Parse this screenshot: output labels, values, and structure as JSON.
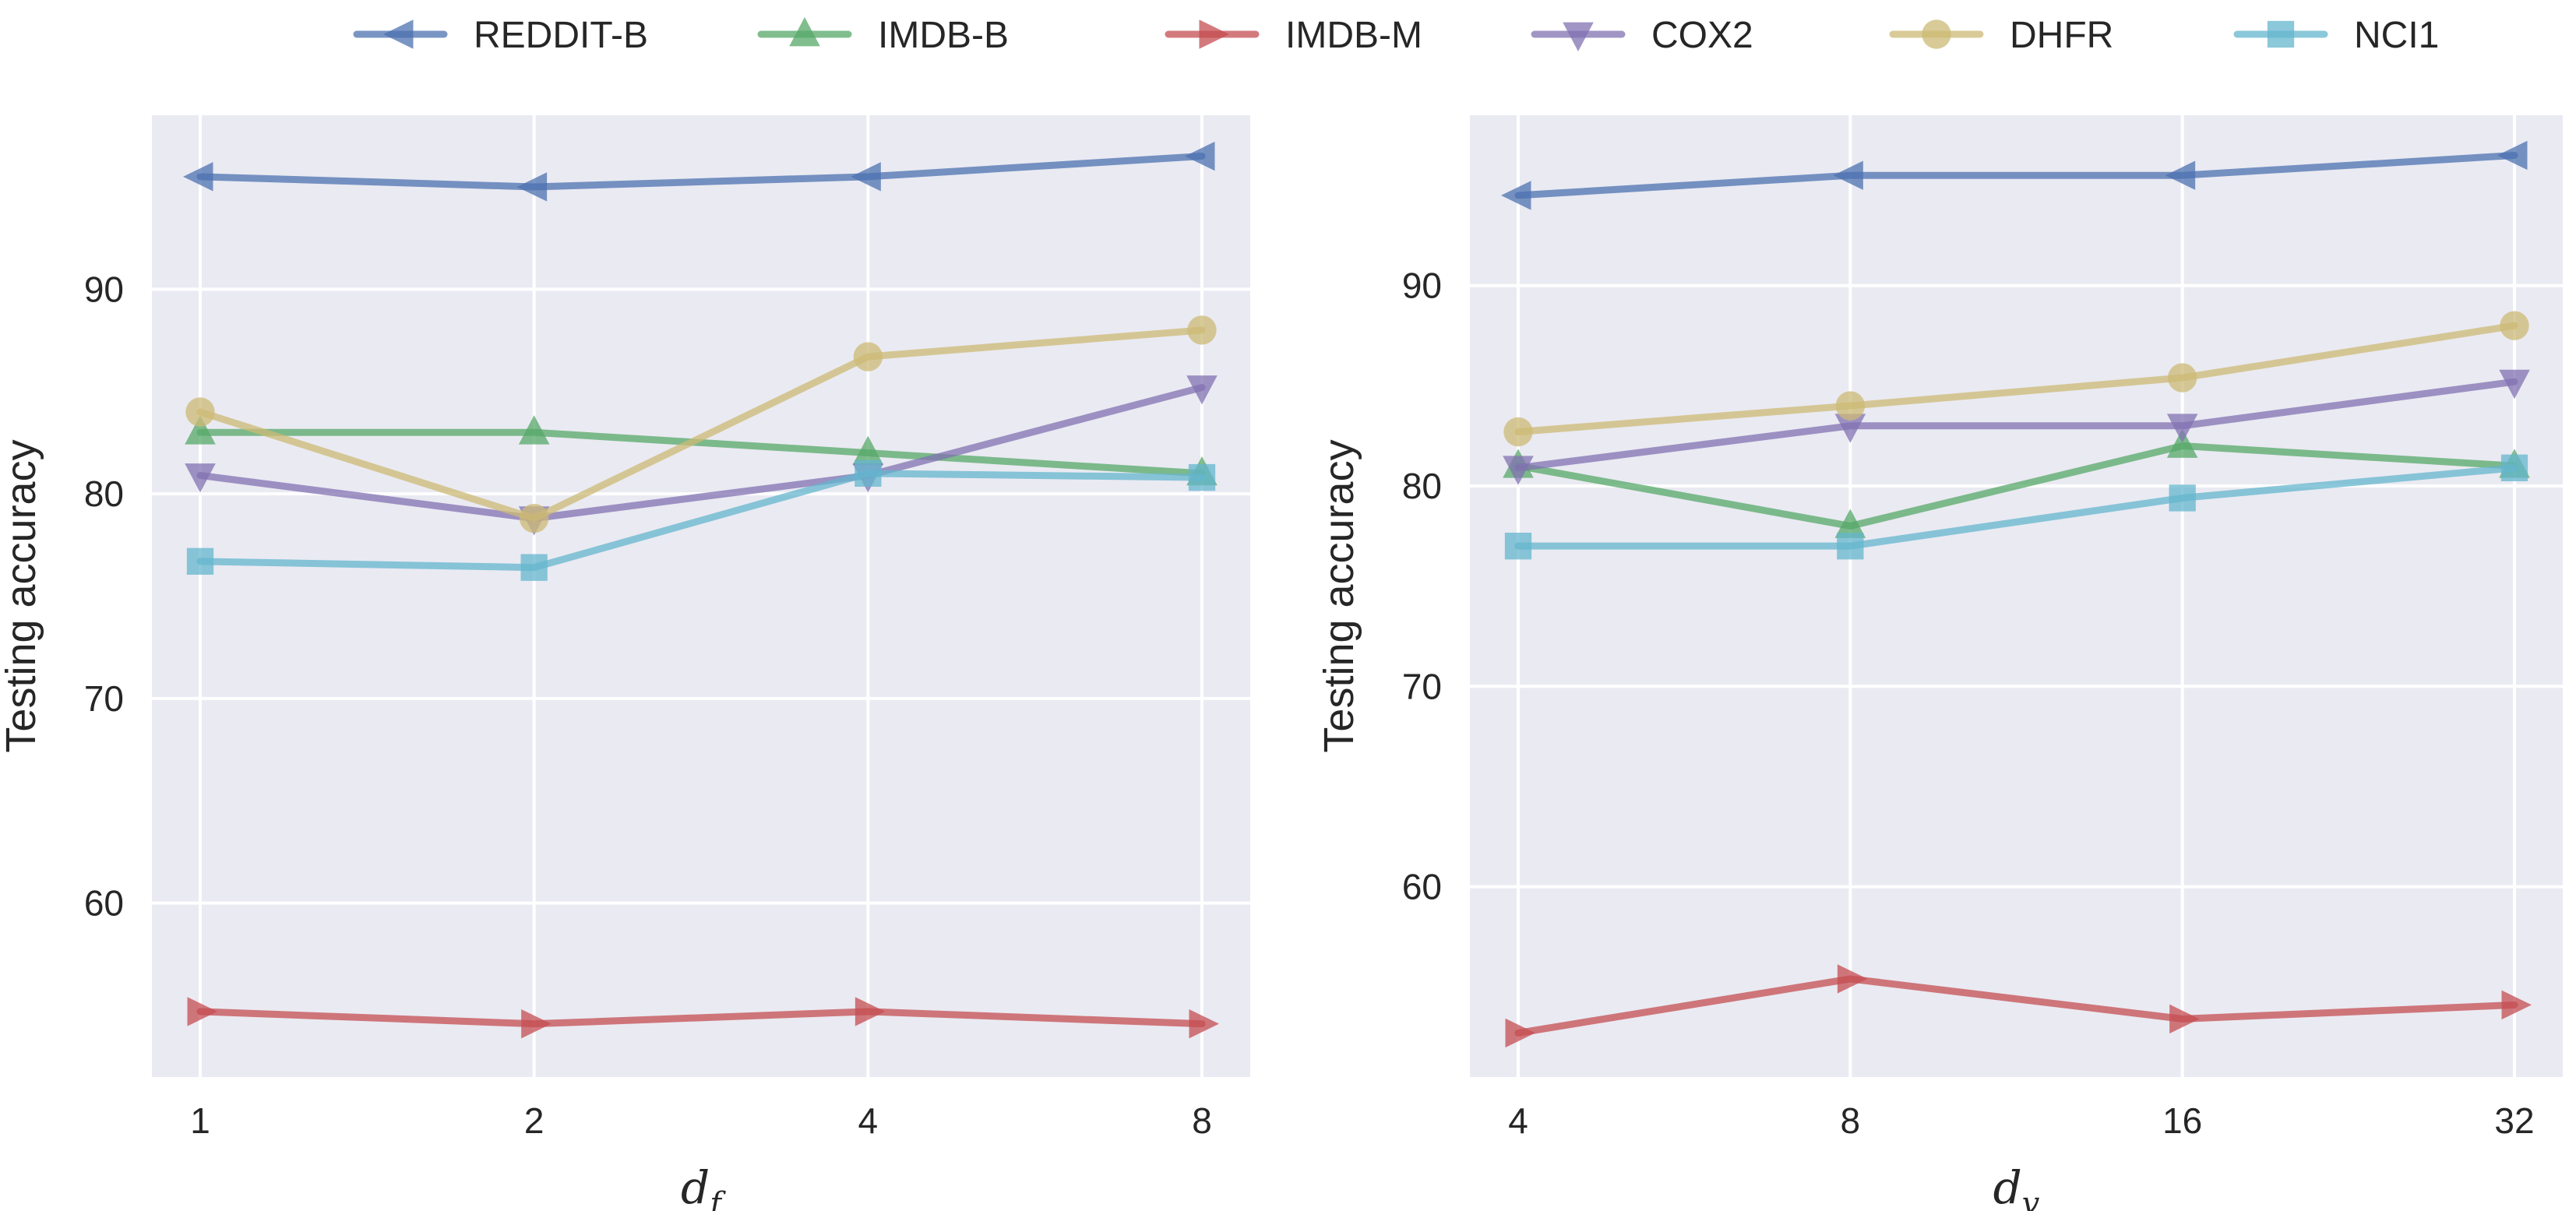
{
  "chart_data": [
    {
      "type": "line",
      "title": "",
      "xlabel": "d",
      "xlabel_subscript": "f",
      "ylabel": "Testing accuracy",
      "categories": [
        "1",
        "2",
        "4",
        "8"
      ],
      "ylim": [
        51.5,
        98.5
      ],
      "yticks": [
        60,
        70,
        80,
        90
      ],
      "yticklabels": [
        "60",
        "70",
        "80",
        "90"
      ],
      "grid": true,
      "series": [
        {
          "name": "REDDIT-B",
          "values": [
            95.5,
            95.0,
            95.5,
            96.5
          ]
        },
        {
          "name": "IMDB-B",
          "values": [
            83.0,
            83.0,
            82.0,
            81.0
          ]
        },
        {
          "name": "IMDB-M",
          "values": [
            54.7,
            54.1,
            54.7,
            54.1
          ]
        },
        {
          "name": "COX2",
          "values": [
            80.9,
            78.8,
            80.9,
            85.2
          ]
        },
        {
          "name": "DHFR",
          "values": [
            84.0,
            78.8,
            86.7,
            88.0
          ]
        },
        {
          "name": "NCI1",
          "values": [
            76.7,
            76.4,
            81.0,
            80.8
          ]
        }
      ]
    },
    {
      "type": "line",
      "title": "",
      "xlabel": "d",
      "xlabel_subscript": "v",
      "ylabel": "Testing accuracy",
      "categories": [
        "4",
        "8",
        "16",
        "32"
      ],
      "ylim": [
        50.5,
        98.5
      ],
      "yticks": [
        60,
        70,
        80,
        90
      ],
      "yticklabels": [
        "60",
        "70",
        "80",
        "90"
      ],
      "grid": true,
      "series": [
        {
          "name": "REDDIT-B",
          "values": [
            94.5,
            95.5,
            95.5,
            96.5
          ]
        },
        {
          "name": "IMDB-B",
          "values": [
            81.0,
            78.0,
            82.0,
            81.0
          ]
        },
        {
          "name": "IMDB-M",
          "values": [
            52.7,
            55.4,
            53.4,
            54.1
          ]
        },
        {
          "name": "COX2",
          "values": [
            80.9,
            83.0,
            83.0,
            85.2
          ]
        },
        {
          "name": "DHFR",
          "values": [
            82.7,
            84.0,
            85.4,
            88.0
          ]
        },
        {
          "name": "NCI1",
          "values": [
            77.0,
            77.0,
            79.4,
            80.9
          ]
        }
      ]
    }
  ],
  "legend": {
    "placement": "top-center",
    "entries": [
      {
        "name": "REDDIT-B",
        "color": "#4c72b0",
        "marker": "triangle-left"
      },
      {
        "name": "IMDB-B",
        "color": "#55a868",
        "marker": "triangle-up"
      },
      {
        "name": "IMDB-M",
        "color": "#c44e52",
        "marker": "triangle-right"
      },
      {
        "name": "COX2",
        "color": "#8172b2",
        "marker": "triangle-down"
      },
      {
        "name": "DHFR",
        "color": "#ccb974",
        "marker": "circle"
      },
      {
        "name": "NCI1",
        "color": "#64b5cd",
        "marker": "square"
      }
    ]
  },
  "style": {
    "plot_background": "#eaeaf2",
    "grid_color": "#ffffff",
    "text_color": "#262626"
  }
}
